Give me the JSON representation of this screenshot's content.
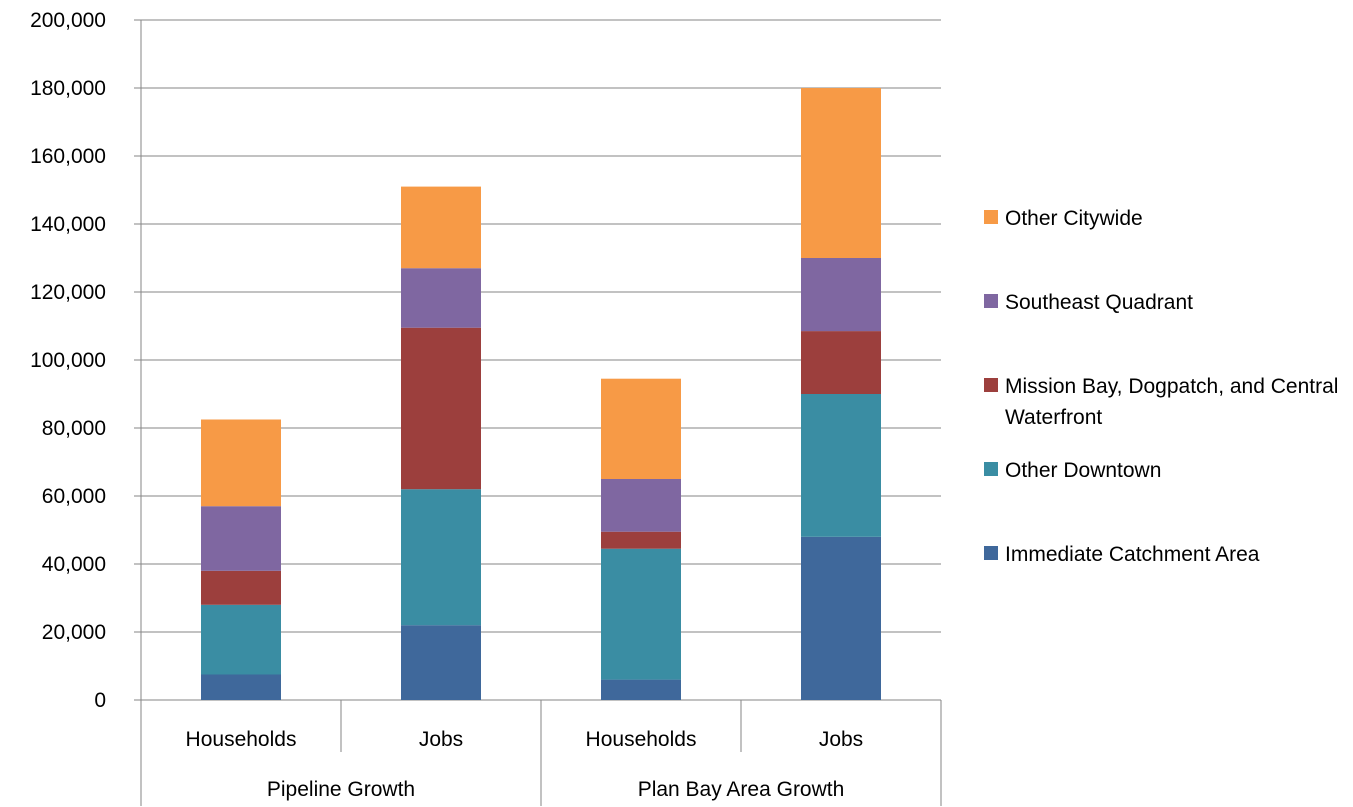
{
  "chart_data": {
    "type": "bar",
    "stacked": true,
    "groups": [
      {
        "label": "Pipeline Growth",
        "categories": [
          "Households",
          "Jobs"
        ]
      },
      {
        "label": "Plan Bay Area Growth",
        "categories": [
          "Households",
          "Jobs"
        ]
      }
    ],
    "categories": [
      "Households",
      "Jobs",
      "Households",
      "Jobs"
    ],
    "series": [
      {
        "name": "Immediate Catchment Area",
        "color": "#3F689B",
        "values": [
          7500,
          22000,
          6000,
          48000
        ]
      },
      {
        "name": "Other Downtown",
        "color": "#3A8DA3",
        "values": [
          20500,
          40000,
          38500,
          42000
        ]
      },
      {
        "name": "Mission Bay, Dogpatch, and Central Waterfront",
        "color": "#9C3F3D",
        "values": [
          10000,
          47500,
          5000,
          18500
        ]
      },
      {
        "name": "Southeast Quadrant",
        "color": "#7F67A1",
        "values": [
          19000,
          17500,
          15500,
          21500
        ]
      },
      {
        "name": "Other Citywide",
        "color": "#F79A46",
        "values": [
          25500,
          24000,
          29500,
          50000
        ]
      }
    ],
    "ylim": [
      0,
      200000
    ],
    "yticks": [
      "0",
      "20,000",
      "40,000",
      "60,000",
      "80,000",
      "100,000",
      "120,000",
      "140,000",
      "160,000",
      "180,000",
      "200,000"
    ],
    "grid": true,
    "legend": "right",
    "legend_order": [
      "Other Citywide",
      "Southeast Quadrant",
      "Mission Bay, Dogpatch, and Central Waterfront",
      "Other Downtown",
      "Immediate Catchment Area"
    ]
  }
}
